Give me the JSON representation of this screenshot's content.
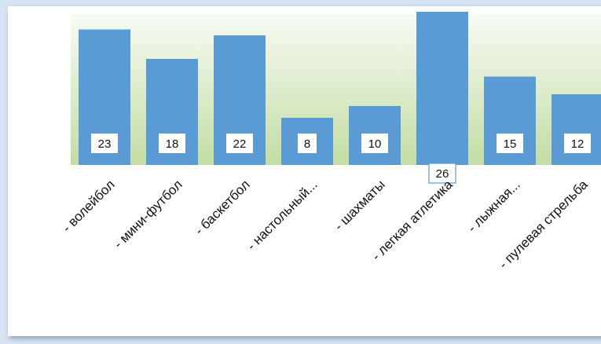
{
  "chart_data": {
    "type": "bar",
    "categories": [
      "- волейбол",
      "- мини-футбол",
      "- баскетбол",
      "- настольный...",
      "- шахматы",
      "- легкая атлетика",
      "- лыжная...",
      "- пулевая стрельба"
    ],
    "values": [
      23,
      18,
      22,
      8,
      10,
      26,
      15,
      12
    ],
    "title": "",
    "xlabel": "",
    "ylabel": "",
    "ylim": [
      0,
      28
    ],
    "grid": false,
    "legend": "none",
    "colors": {
      "bar": "#5b9bd5",
      "plot_gradient_top": "#f4f9ef",
      "plot_gradient_bottom": "#c3dda4",
      "page_background": "#d6e4f2"
    }
  }
}
